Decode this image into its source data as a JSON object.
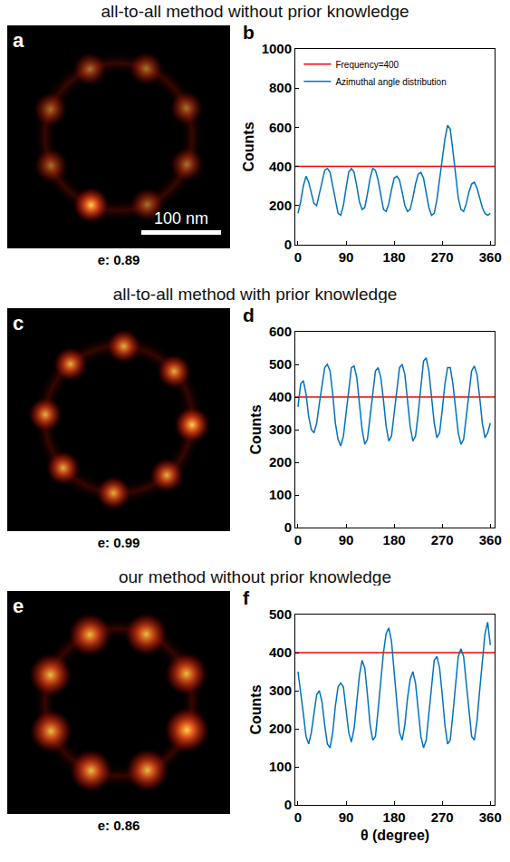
{
  "rows": [
    {
      "title": "all-to-all method without prior knowledge",
      "image": {
        "panel": "a",
        "caption": "e: 0.89",
        "scale_bar": "100 nm"
      }
    },
    {
      "title": "all-to-all method with prior knowledge",
      "image": {
        "panel": "c",
        "caption": "e: 0.99"
      }
    },
    {
      "title": "our method without prior knowledge",
      "image": {
        "panel": "e",
        "caption": "e: 0.86"
      }
    }
  ],
  "chart_data": [
    {
      "type": "line",
      "panel": "b",
      "ylabel": "Counts",
      "legend": "top-left",
      "grid": false,
      "xlim": [
        -5,
        368
      ],
      "xticks": [
        0,
        90,
        180,
        270,
        360
      ],
      "ylim": [
        0,
        1000
      ],
      "yticks": [
        0,
        200,
        400,
        600,
        800,
        1000
      ],
      "series": [
        {
          "name": "Frequency=400",
          "color": "#ff0000",
          "x": [
            -5,
            368
          ],
          "values": [
            400,
            400
          ]
        },
        {
          "name": "Azimuthal angle distribution",
          "color": "#0072bd",
          "x": [
            0,
            5,
            10,
            15,
            20,
            25,
            30,
            35,
            40,
            45,
            50,
            55,
            60,
            65,
            70,
            75,
            80,
            85,
            90,
            95,
            100,
            105,
            110,
            115,
            120,
            125,
            130,
            135,
            140,
            145,
            150,
            155,
            160,
            165,
            170,
            175,
            180,
            185,
            190,
            195,
            200,
            205,
            210,
            215,
            220,
            225,
            230,
            235,
            240,
            245,
            250,
            255,
            260,
            265,
            270,
            275,
            280,
            285,
            290,
            295,
            300,
            305,
            310,
            315,
            320,
            325,
            330,
            335,
            340,
            345,
            350,
            355,
            360
          ],
          "values": [
            160,
            220,
            300,
            350,
            320,
            260,
            210,
            200,
            260,
            330,
            380,
            390,
            370,
            300,
            220,
            160,
            150,
            200,
            290,
            370,
            390,
            370,
            300,
            220,
            180,
            190,
            260,
            340,
            390,
            380,
            330,
            250,
            180,
            170,
            210,
            280,
            340,
            350,
            330,
            270,
            200,
            170,
            180,
            240,
            310,
            360,
            370,
            340,
            270,
            190,
            150,
            160,
            230,
            330,
            430,
            540,
            610,
            590,
            480,
            350,
            240,
            180,
            170,
            210,
            270,
            310,
            320,
            290,
            240,
            190,
            160,
            150,
            160
          ]
        }
      ]
    },
    {
      "type": "line",
      "panel": "d",
      "ylabel": "Counts",
      "grid": false,
      "xlim": [
        -5,
        368
      ],
      "xticks": [
        0,
        90,
        180,
        270,
        360
      ],
      "ylim": [
        0,
        600
      ],
      "yticks": [
        0,
        100,
        200,
        300,
        400,
        500,
        600
      ],
      "series": [
        {
          "color": "#ff0000",
          "x": [
            -5,
            368
          ],
          "values": [
            400,
            400
          ]
        },
        {
          "color": "#0072bd",
          "x": [
            0,
            5,
            10,
            15,
            20,
            25,
            30,
            35,
            40,
            45,
            50,
            55,
            60,
            65,
            70,
            75,
            80,
            85,
            90,
            95,
            100,
            105,
            110,
            115,
            120,
            125,
            130,
            135,
            140,
            145,
            150,
            155,
            160,
            165,
            170,
            175,
            180,
            185,
            190,
            195,
            200,
            205,
            210,
            215,
            220,
            225,
            230,
            235,
            240,
            245,
            250,
            255,
            260,
            265,
            270,
            275,
            280,
            285,
            290,
            295,
            300,
            305,
            310,
            315,
            320,
            325,
            330,
            335,
            340,
            345,
            350,
            355,
            360
          ],
          "values": [
            370,
            440,
            450,
            410,
            340,
            300,
            290,
            320,
            380,
            440,
            490,
            500,
            480,
            410,
            320,
            270,
            250,
            280,
            350,
            430,
            490,
            495,
            460,
            380,
            300,
            255,
            270,
            340,
            420,
            480,
            490,
            460,
            390,
            310,
            265,
            280,
            350,
            430,
            490,
            500,
            470,
            390,
            310,
            265,
            280,
            350,
            440,
            510,
            520,
            480,
            400,
            320,
            275,
            290,
            360,
            440,
            490,
            490,
            440,
            360,
            290,
            255,
            270,
            340,
            420,
            480,
            495,
            470,
            400,
            320,
            275,
            290,
            320
          ]
        }
      ]
    },
    {
      "type": "line",
      "panel": "f",
      "ylabel": "Counts",
      "xlabel": "θ (degree)",
      "grid": false,
      "xlim": [
        -5,
        368
      ],
      "xticks": [
        0,
        90,
        180,
        270,
        360
      ],
      "ylim": [
        0,
        500
      ],
      "yticks": [
        0,
        100,
        200,
        300,
        400,
        500
      ],
      "series": [
        {
          "color": "#ff0000",
          "x": [
            -5,
            368
          ],
          "values": [
            400,
            400
          ]
        },
        {
          "color": "#0072bd",
          "x": [
            0,
            5,
            10,
            15,
            20,
            25,
            30,
            35,
            40,
            45,
            50,
            55,
            60,
            65,
            70,
            75,
            80,
            85,
            90,
            95,
            100,
            105,
            110,
            115,
            120,
            125,
            130,
            135,
            140,
            145,
            150,
            155,
            160,
            165,
            170,
            175,
            180,
            185,
            190,
            195,
            200,
            205,
            210,
            215,
            220,
            225,
            230,
            235,
            240,
            245,
            250,
            255,
            260,
            265,
            270,
            275,
            280,
            285,
            290,
            295,
            300,
            305,
            310,
            315,
            320,
            325,
            330,
            335,
            340,
            345,
            350,
            355,
            360
          ],
          "values": [
            350,
            300,
            240,
            180,
            160,
            190,
            240,
            290,
            300,
            270,
            210,
            160,
            150,
            190,
            260,
            310,
            320,
            310,
            250,
            190,
            165,
            200,
            270,
            340,
            380,
            360,
            290,
            210,
            170,
            180,
            250,
            330,
            400,
            450,
            465,
            430,
            350,
            260,
            190,
            170,
            210,
            280,
            330,
            350,
            320,
            250,
            180,
            150,
            170,
            240,
            320,
            380,
            390,
            360,
            290,
            210,
            160,
            170,
            240,
            320,
            390,
            410,
            390,
            320,
            240,
            180,
            170,
            220,
            300,
            380,
            450,
            480,
            420
          ]
        }
      ]
    }
  ]
}
